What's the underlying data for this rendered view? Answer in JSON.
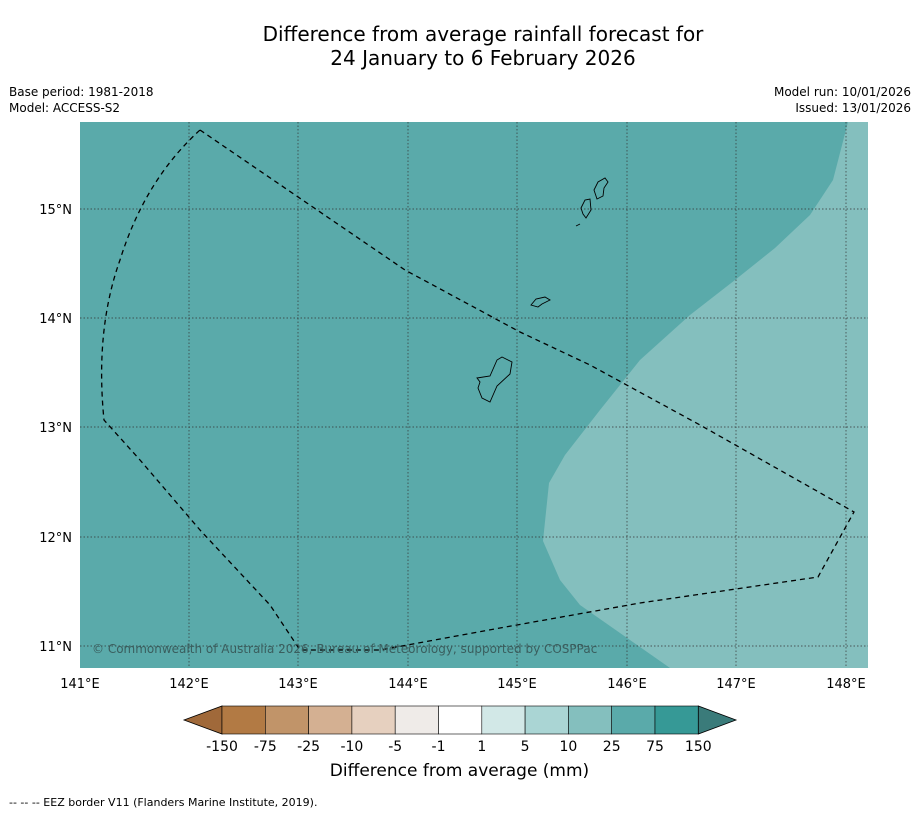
{
  "title": {
    "line1": "Difference from average rainfall forecast for",
    "line2": "24 January to 6 February 2026"
  },
  "meta": {
    "base_period": "Base period: 1981-2018",
    "model": "Model: ACCESS-S2",
    "model_run": "Model run: 10/01/2026",
    "issued": "Issued: 13/01/2026"
  },
  "map": {
    "lon_ticks": [
      "141°E",
      "142°E",
      "143°E",
      "144°E",
      "145°E",
      "146°E",
      "147°E",
      "148°E"
    ],
    "lat_ticks": [
      "15°N",
      "14°N",
      "13°N",
      "12°N",
      "11°N"
    ],
    "copyright": "© Commonwealth of Australia 2026, Bureau of Meteorology, supported by COSPPac",
    "regions": [
      {
        "category": "25 to 75",
        "color": "#5aaaaa"
      },
      {
        "category": "10 to 25",
        "color": "#84bfbe"
      }
    ]
  },
  "colorbar": {
    "boundaries": [
      "-150",
      "-75",
      "-25",
      "-10",
      "-5",
      "-1",
      "1",
      "5",
      "10",
      "25",
      "75",
      "150"
    ],
    "colors": [
      "#a0693a",
      "#b27a44",
      "#c19469",
      "#d4b092",
      "#e6d0bf",
      "#efebe8",
      "#ffffff",
      "#d2e8e7",
      "#aad5d4",
      "#84bfbe",
      "#5aaaaa",
      "#369996",
      "#3a7b7a"
    ],
    "title": "Difference from average (mm)"
  },
  "footnote": "--  --  -- EEZ border V11 (Flanders Marine Institute, 2019)."
}
